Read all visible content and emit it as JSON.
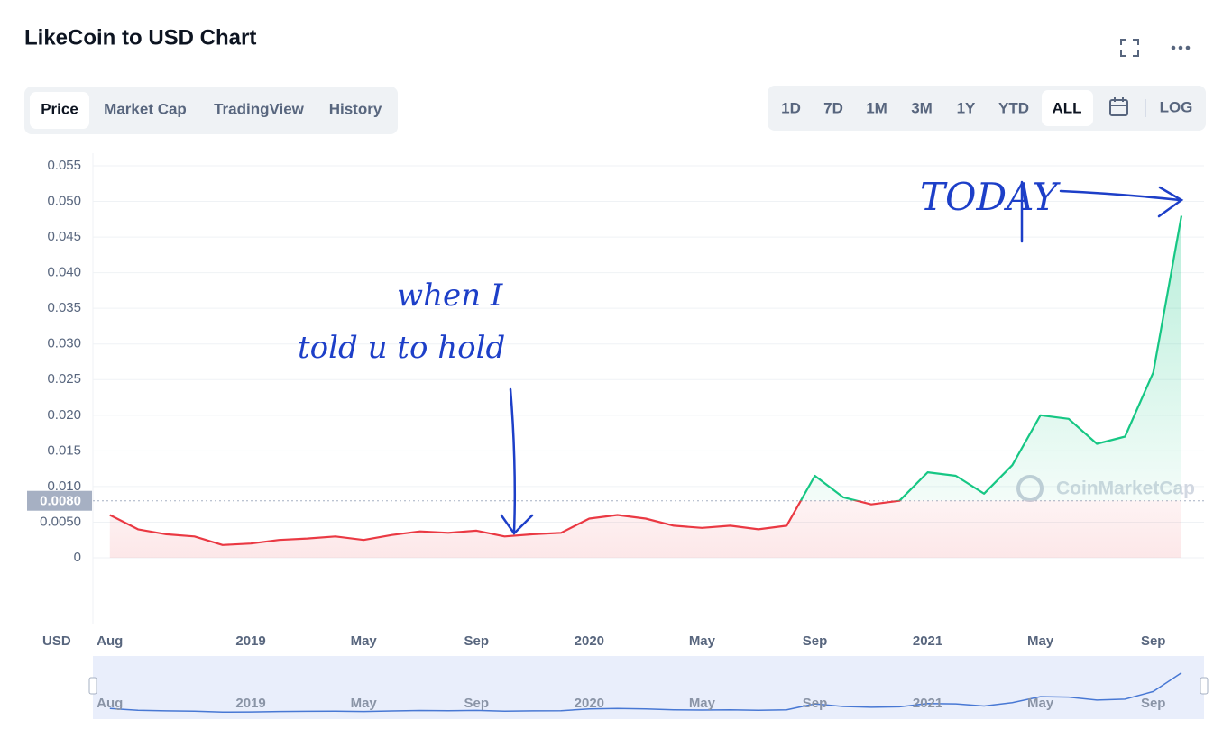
{
  "header": {
    "title": "LikeCoin to USD Chart"
  },
  "tabs": [
    "Price",
    "Market Cap",
    "TradingView",
    "History"
  ],
  "active_tab": 0,
  "ranges": [
    "1D",
    "7D",
    "1M",
    "3M",
    "1Y",
    "YTD",
    "ALL"
  ],
  "active_range": 6,
  "log_label": "LOG",
  "chart_data": {
    "type": "line",
    "categories": [
      "Aug",
      null,
      null,
      null,
      null,
      "2019",
      null,
      null,
      null,
      "May",
      null,
      null,
      null,
      "Sep",
      null,
      null,
      null,
      "2020",
      null,
      null,
      null,
      "May",
      null,
      null,
      null,
      "Sep",
      null,
      null,
      null,
      "2021",
      null,
      null,
      null,
      "May",
      null,
      null,
      null,
      "Sep",
      null
    ],
    "series": [
      {
        "values": [
          0.006,
          0.004,
          0.0033,
          0.003,
          0.0018,
          0.002,
          0.0025,
          0.0027,
          0.003,
          0.0025,
          0.0032,
          0.0037,
          0.0035,
          0.0038,
          0.003,
          0.0033,
          0.0035,
          0.0055,
          0.006,
          0.0055,
          0.0045,
          0.0042,
          0.0045,
          0.004,
          0.0045,
          0.0115,
          0.0085,
          0.0075,
          0.008,
          0.012,
          0.0115,
          0.009,
          0.013,
          0.02,
          0.0195,
          0.016,
          0.017,
          0.026,
          0.048
        ]
      }
    ],
    "up_color": "#16c784",
    "down_color": "#ea3943",
    "reference": {
      "value": 0.008,
      "label": "0.0080"
    },
    "ylim": [
      0,
      0.055
    ],
    "yticks": [
      0,
      {
        "value": 0.005,
        "label": "0.0050"
      },
      {
        "value": 0.01,
        "label": "0.010"
      },
      0.015,
      {
        "value": 0.02,
        "label": "0.020"
      },
      0.025,
      {
        "value": 0.03,
        "label": "0.030"
      },
      0.035,
      {
        "value": 0.04,
        "label": "0.040"
      },
      0.045,
      {
        "value": 0.05,
        "label": "0.050"
      },
      0.055
    ],
    "grid": true,
    "y_axis_label": "USD",
    "watermark": "CoinMarketCap",
    "annotations": [
      "when I",
      "told u to hold",
      "TODAY"
    ]
  }
}
